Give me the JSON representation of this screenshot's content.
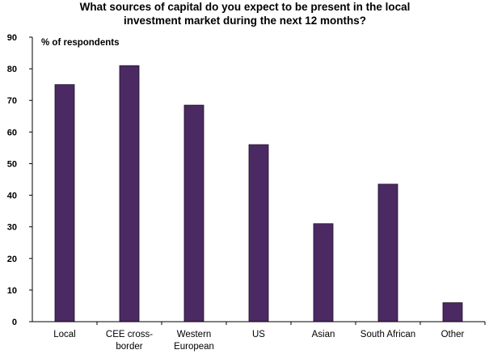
{
  "chart_data": {
    "type": "bar",
    "title_lines": [
      "What sources of capital do you expect to be present in the local",
      "investment market during the next 12 months?"
    ],
    "ylabel": "% of respondents",
    "xlabel": "",
    "categories": [
      [
        "Local"
      ],
      [
        "CEE cross-",
        "border"
      ],
      [
        "Western",
        "European"
      ],
      [
        "US"
      ],
      [
        "Asian"
      ],
      [
        "South African"
      ],
      [
        "Other"
      ]
    ],
    "values": [
      75,
      81,
      68.5,
      56,
      31,
      43.5,
      6
    ],
    "ylim": [
      0,
      90
    ],
    "yticks": [
      0,
      10,
      20,
      30,
      40,
      50,
      60,
      70,
      80,
      90
    ],
    "bar_color": "#4b2a63",
    "grid": false,
    "legend": "none"
  }
}
